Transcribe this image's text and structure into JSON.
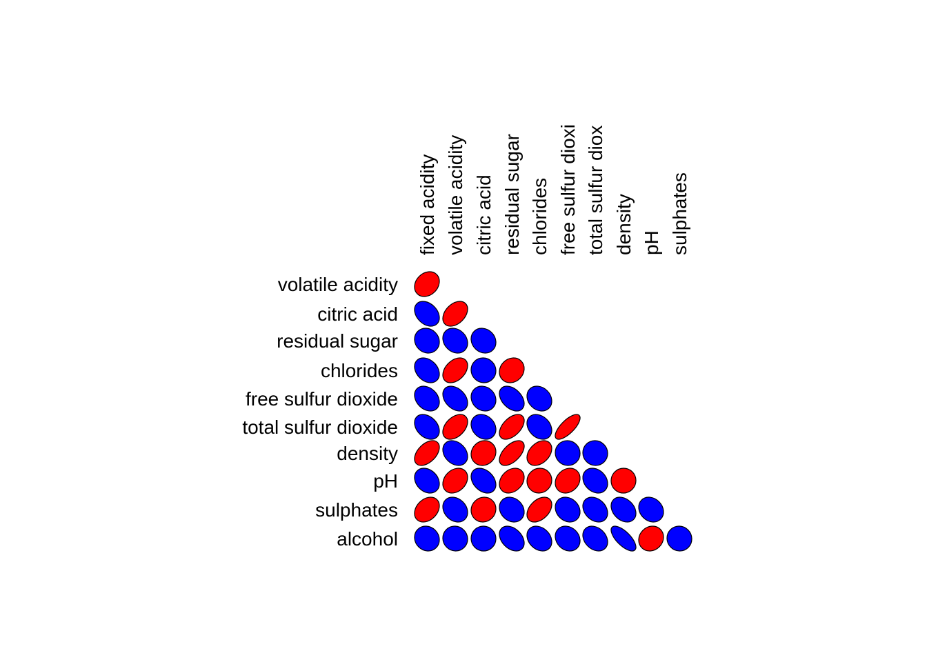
{
  "chart_data": {
    "type": "heatmap",
    "subtype": "correlation-ellipse-lower-triangle",
    "title": "",
    "column_labels": [
      "fixed acidity",
      "volatile acidity",
      "citric acid",
      "residual sugar",
      "chlorides",
      "free sulfur dioxi",
      "total sulfur diox",
      "density",
      "pH",
      "sulphates"
    ],
    "row_labels": [
      "volatile acidity",
      "citric acid",
      "residual sugar",
      "chlorides",
      "free sulfur dioxide",
      "total sulfur dioxide",
      "density",
      "pH",
      "sulphates",
      "alcohol"
    ],
    "positive_color": "#ff0000",
    "negative_color": "#0000ff",
    "outline_color": "#000000",
    "values": [
      [
        0.22
      ],
      [
        -0.32,
        0.38
      ],
      [
        -0.11,
        -0.2,
        -0.14
      ],
      [
        -0.3,
        0.38,
        -0.04,
        0.14
      ],
      [
        -0.28,
        -0.35,
        -0.13,
        -0.4,
        -0.2
      ],
      [
        -0.33,
        0.41,
        -0.2,
        0.5,
        -0.28,
        0.72
      ],
      [
        0.46,
        -0.27,
        0.1,
        0.55,
        0.36,
        -0.03,
        -0.03
      ],
      [
        -0.25,
        0.26,
        -0.33,
        0.27,
        0.04,
        0.19,
        -0.24,
        0.01
      ],
      [
        0.3,
        -0.23,
        0.06,
        -0.19,
        0.4,
        -0.19,
        -0.28,
        -0.3,
        -0.19
      ],
      [
        -0.1,
        -0.04,
        -0.01,
        -0.36,
        -0.26,
        -0.18,
        -0.27,
        -0.69,
        0.12,
        -0.03
      ]
    ]
  }
}
